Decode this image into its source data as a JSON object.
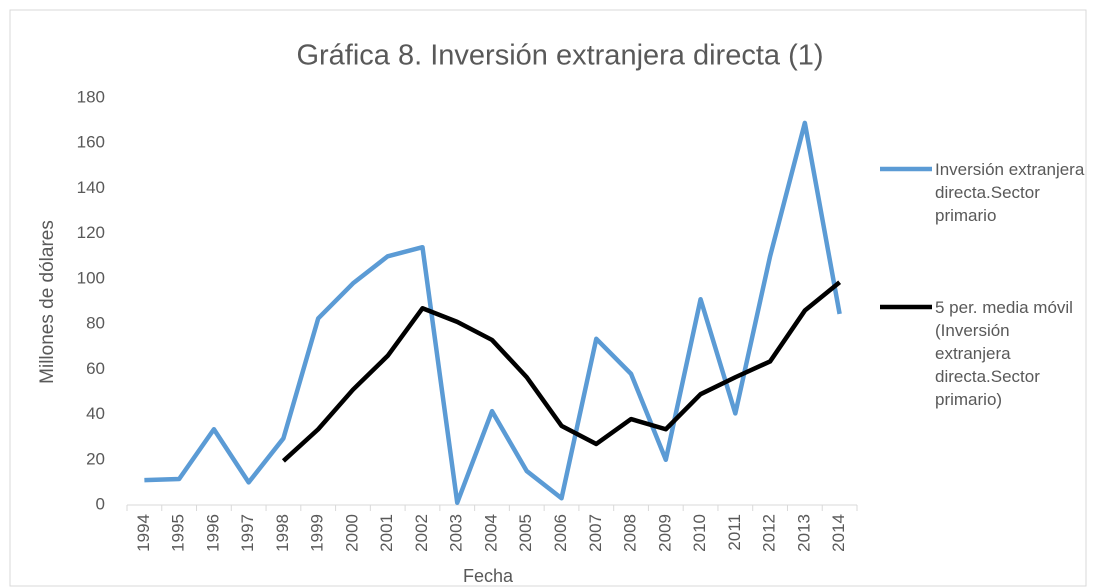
{
  "chart_data": {
    "type": "line",
    "title": "Gráfica 8. Inversión extranjera directa (1)",
    "x_label": "Fecha",
    "y_label": "Millones de dólares",
    "categories": [
      "1994",
      "1995",
      "1996",
      "1997",
      "1998",
      "1999",
      "2000",
      "2001",
      "2002",
      "2003",
      "2004",
      "2005",
      "2006",
      "2007",
      "2008",
      "2009",
      "2010",
      "2011",
      "2012",
      "2013",
      "2014"
    ],
    "series": [
      {
        "name": "Inversión extranjera directa.Sector primario",
        "color": "#5b9bd5",
        "values": [
          11,
          11.5,
          33.5,
          10,
          29.5,
          82.5,
          98,
          110,
          114,
          1,
          41.5,
          15,
          3,
          73.5,
          58,
          20,
          91,
          40.5,
          110,
          169,
          84.5
        ]
      },
      {
        "name": "5 per. media móvil (Inversión extranjera directa.Sector primario)",
        "color": "#000000",
        "values": [
          null,
          null,
          null,
          null,
          19.5,
          33.5,
          51,
          66,
          87,
          81,
          73,
          56.5,
          35,
          27,
          38,
          33.5,
          49,
          56.5,
          63.5,
          86,
          98.5
        ]
      }
    ],
    "ylim": [
      0,
      180
    ],
    "yticks": [
      0,
      20,
      40,
      60,
      80,
      100,
      120,
      140,
      160,
      180
    ],
    "grid": false,
    "legend": "right"
  }
}
